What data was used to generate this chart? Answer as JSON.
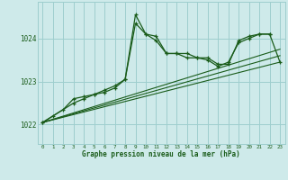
{
  "xlabel": "Graphe pression niveau de la mer (hPa)",
  "bg_color": "#ceeaea",
  "grid_color": "#9ecece",
  "line_color": "#1a5c1a",
  "x_ticks": [
    0,
    1,
    2,
    3,
    4,
    5,
    6,
    7,
    8,
    9,
    10,
    11,
    12,
    13,
    14,
    15,
    16,
    17,
    18,
    19,
    20,
    21,
    22,
    23
  ],
  "xlim": [
    -0.5,
    23.5
  ],
  "ylim": [
    1021.55,
    1024.85
  ],
  "yticks": [
    1022,
    1023,
    1024
  ],
  "series1_x": [
    0,
    1,
    2,
    3,
    4,
    5,
    6,
    7,
    8,
    9,
    10,
    11,
    12,
    13,
    14,
    15,
    16,
    17,
    18,
    19,
    20,
    21,
    22
  ],
  "series1_y": [
    1022.05,
    1022.2,
    1022.35,
    1022.6,
    1022.65,
    1022.7,
    1022.8,
    1022.9,
    1023.05,
    1024.35,
    1024.1,
    1024.05,
    1023.65,
    1023.65,
    1023.65,
    1023.55,
    1023.55,
    1023.4,
    1023.4,
    1023.95,
    1024.05,
    1024.1,
    1024.1
  ],
  "series2_x": [
    0,
    3,
    4,
    5,
    6,
    7,
    8,
    9,
    10,
    11,
    12,
    13,
    14,
    15,
    16,
    17,
    18,
    19,
    20,
    21,
    22,
    23
  ],
  "series2_y": [
    1022.05,
    1022.5,
    1022.6,
    1022.7,
    1022.75,
    1022.85,
    1023.05,
    1024.55,
    1024.1,
    1023.95,
    1023.65,
    1023.65,
    1023.55,
    1023.55,
    1023.5,
    1023.35,
    1023.45,
    1023.9,
    1024.0,
    1024.1,
    1024.1,
    1023.45
  ],
  "line1_x": [
    0,
    23
  ],
  "line1_y": [
    1022.05,
    1023.45
  ],
  "line2_x": [
    0,
    23
  ],
  "line2_y": [
    1022.05,
    1023.6
  ],
  "line3_x": [
    0,
    23
  ],
  "line3_y": [
    1022.05,
    1023.75
  ]
}
